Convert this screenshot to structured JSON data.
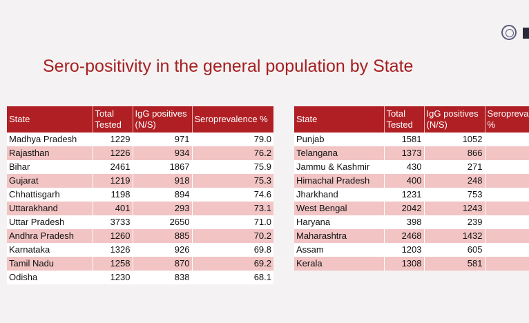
{
  "title": "Sero-positivity in the general population by State",
  "headers": [
    "State",
    "Total Tested",
    "IgG positives (N/S)",
    "Seroprevalence %"
  ],
  "left_table": [
    [
      "Madhya Pradesh",
      "1229",
      "971",
      "79.0"
    ],
    [
      "Rajasthan",
      "1226",
      "934",
      "76.2"
    ],
    [
      "Bihar",
      "2461",
      "1867",
      "75.9"
    ],
    [
      "Gujarat",
      "1219",
      "918",
      "75.3"
    ],
    [
      "Chhattisgarh",
      "1198",
      "894",
      "74.6"
    ],
    [
      "Uttarakhand",
      "401",
      "293",
      "73.1"
    ],
    [
      "Uttar Pradesh",
      "3733",
      "2650",
      "71.0"
    ],
    [
      "Andhra Pradesh",
      "1260",
      "885",
      "70.2"
    ],
    [
      "Karnataka",
      "1326",
      "926",
      "69.8"
    ],
    [
      "Tamil Nadu",
      "1258",
      "870",
      "69.2"
    ],
    [
      "Odisha",
      "1230",
      "838",
      "68.1"
    ]
  ],
  "right_table": [
    [
      "Punjab",
      "1581",
      "1052",
      ""
    ],
    [
      "Telangana",
      "1373",
      "866",
      ""
    ],
    [
      "Jammu & Kashmir",
      "430",
      "271",
      ""
    ],
    [
      "Himachal Pradesh",
      "400",
      "248",
      ""
    ],
    [
      "Jharkhand",
      "1231",
      "753",
      ""
    ],
    [
      "West Bengal",
      "2042",
      "1243",
      ""
    ],
    [
      "Haryana",
      "398",
      "239",
      ""
    ],
    [
      "Maharashtra",
      "2468",
      "1432",
      ""
    ],
    [
      "Assam",
      "1203",
      "605",
      ""
    ],
    [
      "Kerala",
      "1308",
      "581",
      ""
    ]
  ]
}
